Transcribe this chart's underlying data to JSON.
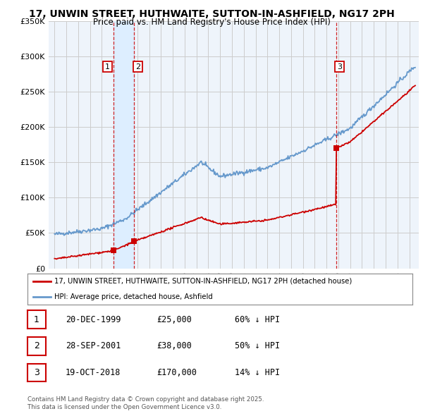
{
  "title": "17, UNWIN STREET, HUTHWAITE, SUTTON-IN-ASHFIELD, NG17 2PH",
  "subtitle": "Price paid vs. HM Land Registry's House Price Index (HPI)",
  "sale_labels": [
    "1",
    "2",
    "3"
  ],
  "sale_prices": [
    25000,
    38000,
    170000
  ],
  "sale_year_floats": [
    1999.97,
    2001.74,
    2018.8
  ],
  "legend_line1": "17, UNWIN STREET, HUTHWAITE, SUTTON-IN-ASHFIELD, NG17 2PH (detached house)",
  "legend_line2": "HPI: Average price, detached house, Ashfield",
  "table_entries": [
    {
      "label": "1",
      "date": "20-DEC-1999",
      "price": "£25,000",
      "hpi": "60% ↓ HPI"
    },
    {
      "label": "2",
      "date": "28-SEP-2001",
      "price": "£38,000",
      "hpi": "50% ↓ HPI"
    },
    {
      "label": "3",
      "date": "19-OCT-2018",
      "price": "£170,000",
      "hpi": "14% ↓ HPI"
    }
  ],
  "footnote1": "Contains HM Land Registry data © Crown copyright and database right 2025.",
  "footnote2": "This data is licensed under the Open Government Licence v3.0.",
  "red_color": "#cc0000",
  "blue_color": "#6699cc",
  "shade_color": "#ddeeff",
  "vline_color": "#cc0000",
  "background_color": "#ffffff",
  "plot_bg_color": "#eef4fb",
  "grid_color": "#cccccc",
  "ylim": [
    0,
    350000
  ],
  "xlim_start": 1994.5,
  "xlim_end": 2025.8
}
